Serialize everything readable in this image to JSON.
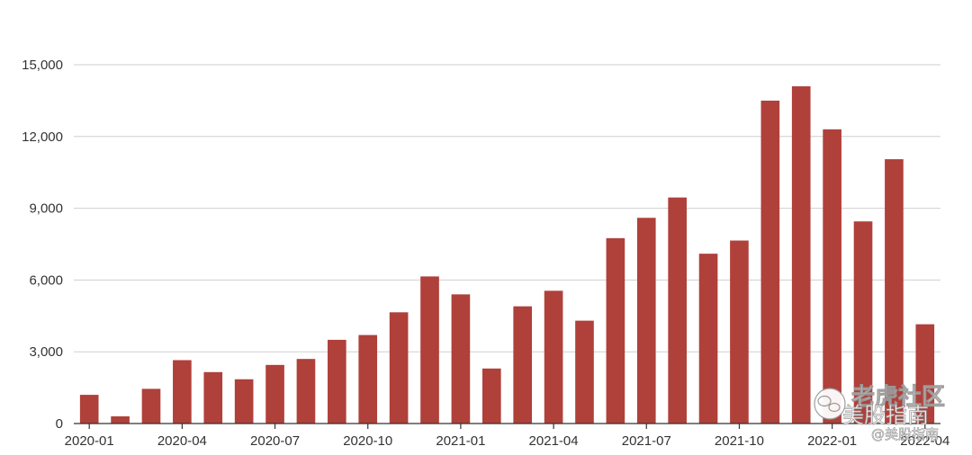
{
  "chart_data": {
    "type": "bar",
    "title": "",
    "xlabel": "",
    "ylabel": "",
    "ylim": [
      0,
      15000
    ],
    "yticks": [
      0,
      3000,
      6000,
      9000,
      12000,
      15000
    ],
    "ytick_labels": [
      "0",
      "3,000",
      "6,000",
      "9,000",
      "12,000",
      "15,000"
    ],
    "grid": true,
    "categories": [
      "2020-01",
      "2020-02",
      "2020-03",
      "2020-04",
      "2020-05",
      "2020-06",
      "2020-07",
      "2020-08",
      "2020-09",
      "2020-10",
      "2020-11",
      "2020-12",
      "2021-01",
      "2021-02",
      "2021-03",
      "2021-04",
      "2021-05",
      "2021-06",
      "2021-07",
      "2021-08",
      "2021-09",
      "2021-10",
      "2021-11",
      "2021-12",
      "2022-01",
      "2022-02",
      "2022-03",
      "2022-04"
    ],
    "xtick_labels": [
      "2020-01",
      "2020-04",
      "2020-07",
      "2020-10",
      "2021-01",
      "2021-04",
      "2021-07",
      "2021-10",
      "2022-01",
      "2022-04"
    ],
    "values": [
      1200,
      300,
      1450,
      2650,
      2150,
      1850,
      2450,
      2700,
      3500,
      3700,
      4650,
      6150,
      5400,
      2300,
      4900,
      5550,
      4300,
      7750,
      8600,
      9450,
      7100,
      7650,
      13500,
      14100,
      12300,
      8450,
      11050,
      4150
    ],
    "bar_color": "#b0403a"
  },
  "watermark": {
    "brand": "老虎社区",
    "channel": "美股指南",
    "handle": "@美股指南"
  }
}
